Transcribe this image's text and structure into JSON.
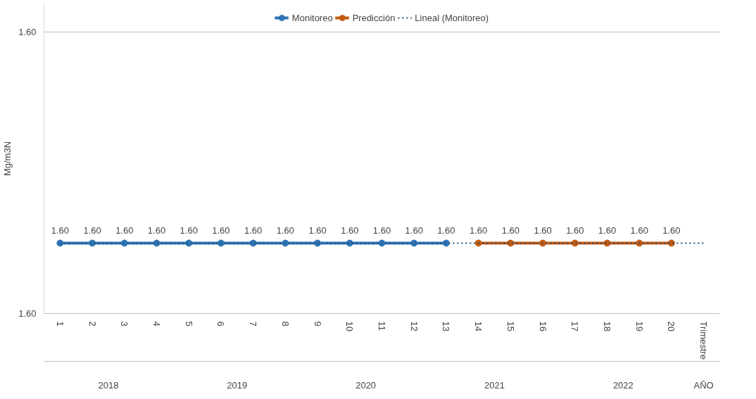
{
  "chart_data": {
    "type": "line",
    "ylabel": "Mg/m3N",
    "xlim": [
      0.5,
      21.5
    ],
    "xticks": [
      1,
      2,
      3,
      4,
      5,
      6,
      7,
      8,
      9,
      10,
      11,
      12,
      13,
      14,
      15,
      16,
      17,
      18,
      19,
      20
    ],
    "ylim": [
      1.59995,
      1.60017
    ],
    "yticks": [
      {
        "value": 1.59995,
        "label": "1.60"
      },
      {
        "value": 1.60015,
        "label": "1.60"
      }
    ],
    "series": [
      {
        "name": "Monitoreo",
        "color": "#2e75b6",
        "marker": "circle",
        "line_style": "solid",
        "x": [
          1,
          2,
          3,
          4,
          5,
          6,
          7,
          8,
          9,
          10,
          11,
          12,
          13
        ],
        "values": [
          1.6,
          1.6,
          1.6,
          1.6,
          1.6,
          1.6,
          1.6,
          1.6,
          1.6,
          1.6,
          1.6,
          1.6,
          1.6
        ],
        "value_labels": [
          "1.60",
          "1.60",
          "1.60",
          "1.60",
          "1.60",
          "1.60",
          "1.60",
          "1.60",
          "1.60",
          "1.60",
          "1.60",
          "1.60",
          "1.60"
        ]
      },
      {
        "name": "Predicción",
        "color": "#c55a11",
        "marker": "circle",
        "line_style": "solid",
        "x": [
          14,
          15,
          16,
          17,
          18,
          19,
          20
        ],
        "values": [
          1.6,
          1.6,
          1.6,
          1.6,
          1.6,
          1.6,
          1.6
        ],
        "value_labels": [
          "1.60",
          "1.60",
          "1.60",
          "1.60",
          "1.60",
          "1.60",
          "1.60"
        ]
      },
      {
        "name": "Lineal (Monitoreo)",
        "color": "#1f4e79",
        "marker": "none",
        "line_style": "dotted",
        "x": [
          1,
          21
        ],
        "values": [
          1.6,
          1.6
        ]
      }
    ],
    "annotations": [
      "2018",
      "2019",
      "2020",
      "2021",
      "2022",
      "Trimestre",
      "AÑO"
    ],
    "grid": "y",
    "legend": "top"
  }
}
